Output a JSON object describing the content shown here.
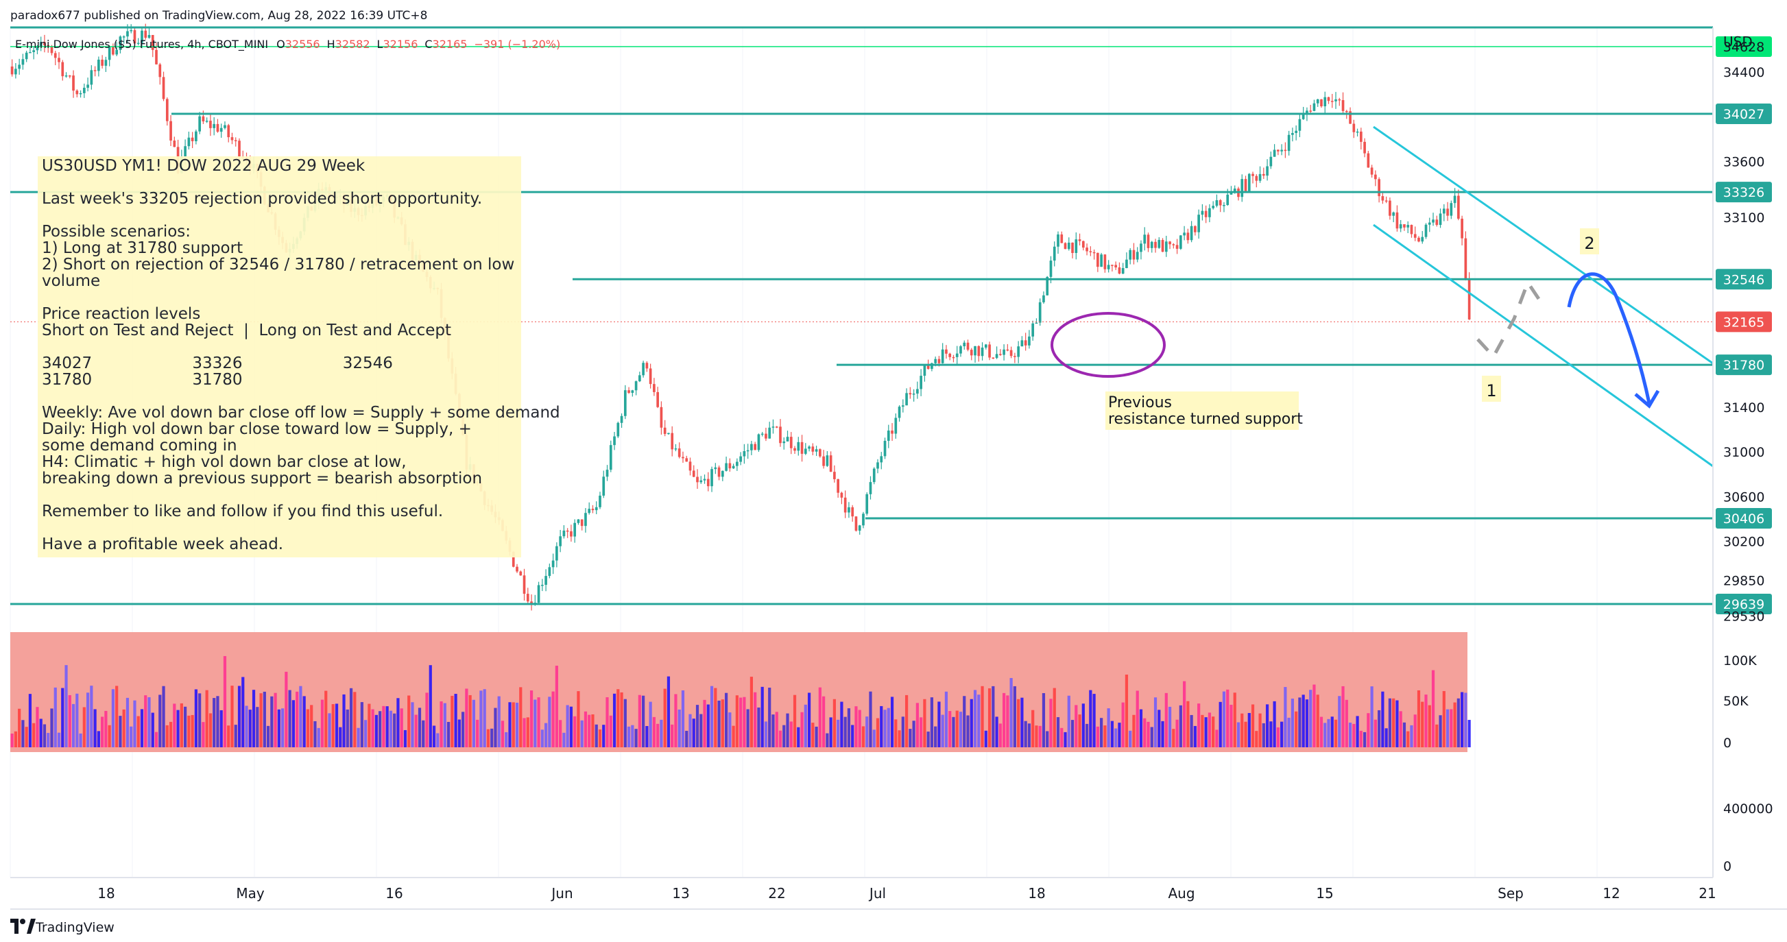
{
  "header": {
    "publisher": "paradox677 published on TradingView.com, Aug 28, 2022 16:39 UTC+8",
    "symbol": "E-mini Dow Jones ($5) Futures, 4h, CBOT_MINI",
    "o_label": "O",
    "o_value": "32556",
    "h_label": "H",
    "h_value": "32582",
    "l_label": "L",
    "l_value": "32156",
    "c_label": "C",
    "c_value": "32165",
    "change": "−391 (−1.20%)"
  },
  "footer": {
    "brand": "TradingView"
  },
  "note": {
    "lines": [
      "US30USD YM1! DOW 2022 AUG 29 Week",
      "",
      "Last week's 33205 rejection provided short opportunity.",
      "",
      "Possible scenarios:",
      "1) Long at 31780 support",
      "2) Short on rejection of 32546 / 31780 / retracement on low",
      "volume",
      "",
      "Price reaction levels",
      "Short on Test and Reject  |  Long on Test and Accept",
      "",
      "34027                    33326                    32546",
      "31780                    31780",
      "",
      "Weekly: Ave vol down bar close off low = Supply + some demand",
      "Daily: High vol down bar close toward low = Supply, +",
      "some demand coming in",
      "H4: Climatic + high vol down bar close at low,",
      "breaking down a previous support = bearish absorption",
      "",
      "Remember to like and follow if you find this useful.",
      "",
      "Have a profitable week ahead."
    ]
  },
  "annotations": {
    "support_note": [
      "Previous",
      "resistance turned support"
    ],
    "scenario_1": "1",
    "scenario_2": "2"
  },
  "colors": {
    "level_line": "#26a69a",
    "channel_line": "#26c6da",
    "up_candle": "#26a69a",
    "down_candle": "#ef5350",
    "ellipse": "#9c27b0",
    "arrow": "#2962ff",
    "green_level": "#00e676",
    "volume_bg": "#f4a19b",
    "note_bg": "#fff9c4"
  },
  "chart_data": {
    "type": "candlestick",
    "timeframe": "4h",
    "currency": "USD",
    "ylim": [
      29430,
      34800
    ],
    "price_ticks": [
      "34400",
      "33600",
      "33100",
      "31400",
      "31000",
      "30600",
      "30200",
      "29850",
      "29530"
    ],
    "time_ticks": [
      "18",
      "May",
      "16",
      "Jun",
      "13",
      "22",
      "Jul",
      "18",
      "Aug",
      "15",
      "Sep",
      "12",
      "21"
    ],
    "levels": [
      {
        "price": 34800,
        "label": ""
      },
      {
        "price": 34628,
        "label": "34628",
        "style": "green"
      },
      {
        "price": 34027,
        "label": "34027"
      },
      {
        "price": 33326,
        "label": "33326"
      },
      {
        "price": 32546,
        "label": "32546"
      },
      {
        "price": 31780,
        "label": "31780"
      },
      {
        "price": 30406,
        "label": "30406"
      },
      {
        "price": 29639,
        "label": "29639"
      }
    ],
    "last_price": {
      "price": 32165,
      "label": "32165"
    },
    "path": [
      [
        0,
        34450
      ],
      [
        10,
        34650
      ],
      [
        18,
        34200
      ],
      [
        30,
        34700
      ],
      [
        38,
        34750
      ],
      [
        46,
        33550
      ],
      [
        52,
        33950
      ],
      [
        58,
        33900
      ],
      [
        66,
        33600
      ],
      [
        76,
        32800
      ],
      [
        86,
        33350
      ],
      [
        95,
        33150
      ],
      [
        104,
        33250
      ],
      [
        112,
        32700
      ],
      [
        118,
        32400
      ],
      [
        126,
        30900
      ],
      [
        134,
        30400
      ],
      [
        144,
        29650
      ],
      [
        152,
        30200
      ],
      [
        162,
        30500
      ],
      [
        170,
        31500
      ],
      [
        176,
        31800
      ],
      [
        180,
        31200
      ],
      [
        190,
        30700
      ],
      [
        200,
        30900
      ],
      [
        210,
        31200
      ],
      [
        218,
        31050
      ],
      [
        226,
        30900
      ],
      [
        234,
        30300
      ],
      [
        240,
        30900
      ],
      [
        248,
        31500
      ],
      [
        256,
        31850
      ],
      [
        264,
        31950
      ],
      [
        270,
        31900
      ],
      [
        276,
        31850
      ],
      [
        282,
        32000
      ],
      [
        290,
        32900
      ],
      [
        298,
        32800
      ],
      [
        306,
        32600
      ],
      [
        314,
        32900
      ],
      [
        322,
        32800
      ],
      [
        330,
        33100
      ],
      [
        338,
        33300
      ],
      [
        346,
        33500
      ],
      [
        354,
        33800
      ],
      [
        360,
        34100
      ],
      [
        366,
        34200
      ],
      [
        372,
        33900
      ],
      [
        378,
        33400
      ],
      [
        384,
        33050
      ],
      [
        390,
        32900
      ],
      [
        396,
        33100
      ],
      [
        400,
        33250
      ],
      [
        402,
        32900
      ],
      [
        404,
        32150
      ]
    ],
    "volume_axis": [
      "100K",
      "50K",
      "0"
    ],
    "lower_axis": [
      "400000",
      "0"
    ],
    "projections": [
      {
        "label": "1",
        "direction": "down-then-up",
        "style": "dashed"
      },
      {
        "label": "2",
        "direction": "up-then-down",
        "style": "solid-arrow"
      }
    ]
  }
}
